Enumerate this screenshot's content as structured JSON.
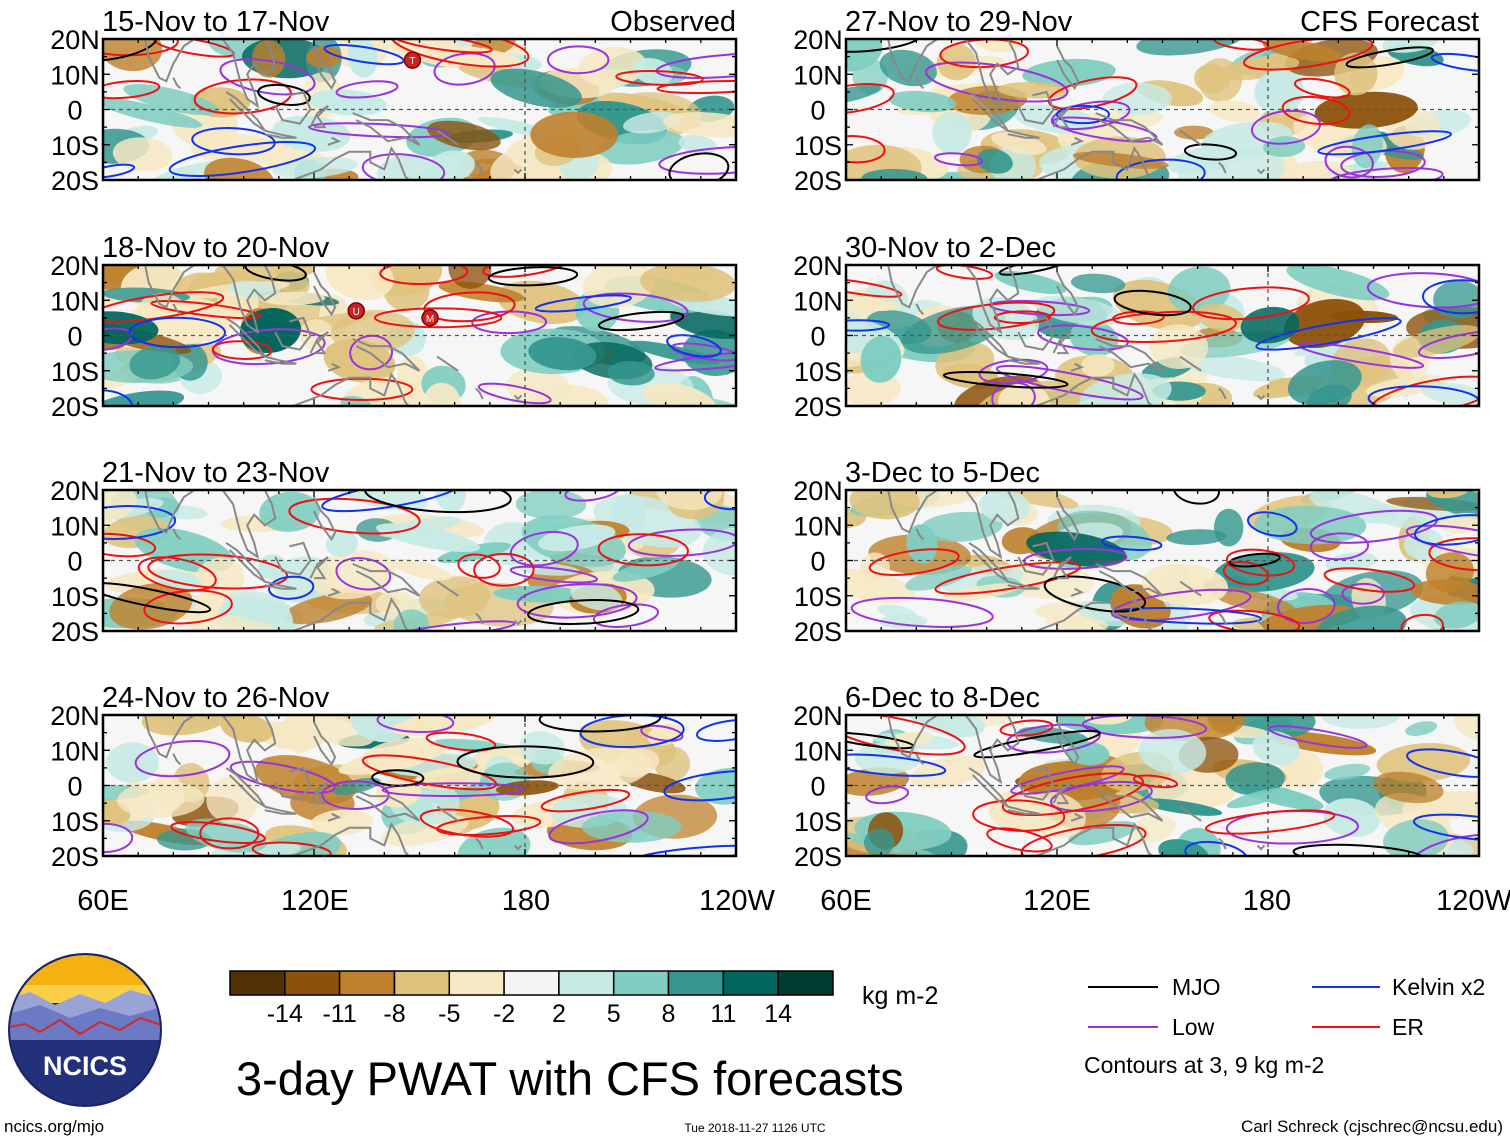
{
  "colors": {
    "mjo": "#000000",
    "low": "#9933dd",
    "kelvin": "#1133ee",
    "er": "#ee1111",
    "land": "#888888"
  },
  "chart_data": {
    "type": "heatmap",
    "title": "3-day PWAT with CFS forecasts",
    "variable": "PWAT anomaly",
    "units": "kg m-2",
    "columns": [
      {
        "header": "Observed",
        "source": "observed"
      },
      {
        "header": "CFS Forecast",
        "source": "forecast"
      }
    ],
    "xrange_lon_east": [
      60,
      240
    ],
    "yrange_lat": [
      -20,
      20
    ],
    "x_ticks": [
      "60E",
      "120E",
      "180",
      "120W"
    ],
    "y_ticks": [
      "20N",
      "10N",
      "0",
      "10S",
      "20S"
    ],
    "panels": [
      {
        "title": "15-Nov to 17-Nov",
        "column": 0,
        "row": 0,
        "header": "Observed",
        "storms": [
          "T"
        ]
      },
      {
        "title": "18-Nov to 20-Nov",
        "column": 0,
        "row": 1,
        "storms": [
          "U",
          "M"
        ]
      },
      {
        "title": "21-Nov to 23-Nov",
        "column": 0,
        "row": 2,
        "storms": []
      },
      {
        "title": "24-Nov to 26-Nov",
        "column": 0,
        "row": 3,
        "storms": []
      },
      {
        "title": "27-Nov to 29-Nov",
        "column": 1,
        "row": 0,
        "header": "CFS Forecast",
        "storms": []
      },
      {
        "title": "30-Nov to 2-Dec",
        "column": 1,
        "row": 1,
        "storms": []
      },
      {
        "title": "3-Dec to 5-Dec",
        "column": 1,
        "row": 2,
        "storms": []
      },
      {
        "title": "6-Dec to 8-Dec",
        "column": 1,
        "row": 3,
        "storms": []
      }
    ],
    "colorbar": {
      "tick_labels": [
        "-14",
        "-11",
        "-8",
        "-5",
        "-2",
        "2",
        "5",
        "8",
        "11",
        "14"
      ],
      "colors": [
        "#543005",
        "#8c510a",
        "#bf812d",
        "#dfc27d",
        "#f6e8c3",
        "#f5f5f5",
        "#c7eae5",
        "#80cdc1",
        "#35978f",
        "#01665e",
        "#003c30"
      ]
    },
    "legend": {
      "entries": [
        {
          "label": "MJO",
          "color_key": "mjo"
        },
        {
          "label": "Kelvin x2",
          "color_key": "kelvin"
        },
        {
          "label": "Low",
          "color_key": "low"
        },
        {
          "label": "ER",
          "color_key": "er"
        }
      ],
      "note": "Contours at 3, 9 kg m-2"
    }
  },
  "logo": {
    "text": "NCICS"
  },
  "footer": {
    "url": "ncics.org/mjo",
    "timestamp": "Tue 2018-11-27 1126 UTC",
    "credit": "Carl Schreck (cjschrec@ncsu.edu)"
  }
}
